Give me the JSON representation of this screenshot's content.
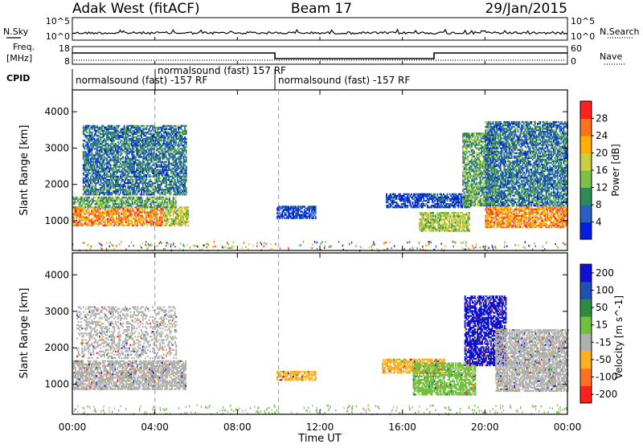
{
  "header": {
    "site": "Adak West (fitACF)",
    "beam": "Beam 17",
    "date": "29/Jan/2015"
  },
  "top_panel": {
    "left_label": "N.Sky",
    "right_label": "N.Search",
    "left_ticks": [
      "10^5",
      "10^0"
    ],
    "right_ticks": [
      "10^5",
      "10^0"
    ]
  },
  "freq_panel": {
    "left_label_1": "Freq.",
    "left_label_2": "[MHz]",
    "left_ticks": [
      "18",
      "8"
    ],
    "right_label": "Nave",
    "right_ticks": [
      "60",
      "0"
    ]
  },
  "cpid": {
    "label": "CPID",
    "segments": [
      {
        "text": "normalsound (fast) -157 RF",
        "start_h": 0,
        "end_h": 4
      },
      {
        "text": "normalsound (fast) 157 RF",
        "start_h": 4,
        "end_h": 10
      },
      {
        "text": "normalsound (fast) -157 RF",
        "start_h": 10,
        "end_h": 24
      }
    ]
  },
  "chart_data": [
    {
      "type": "heatmap",
      "title": "Power",
      "ylabel": "Slant Range [km]",
      "xlabel": "Time UT",
      "x_ticks": [
        "00:00",
        "04:00",
        "08:00",
        "12:00",
        "16:00",
        "20:00",
        "00:00"
      ],
      "y_ticks": [
        1000,
        2000,
        3000,
        4000
      ],
      "xlim_hours": [
        0,
        24
      ],
      "ylim": [
        180,
        4600
      ],
      "colorbar_label": "Power [dB]",
      "colorbar_ticks": [
        4,
        8,
        12,
        16,
        20,
        24,
        28
      ],
      "colorbar_range": [
        0,
        30
      ],
      "colors": [
        "#0020e0",
        "#2860c0",
        "#2e8b57",
        "#7cc04a",
        "#c8d040",
        "#ffb000",
        "#ff7020",
        "#ff2020"
      ],
      "regions": [
        {
          "t0": 0.0,
          "t1": 5.6,
          "r0": 850,
          "r1": 1350,
          "level": 6,
          "fade": true
        },
        {
          "t0": 0.0,
          "t1": 5.0,
          "r0": 1350,
          "r1": 1650,
          "level": 3
        },
        {
          "t0": 0.5,
          "t1": 5.5,
          "r0": 1700,
          "r1": 3600,
          "level": 2
        },
        {
          "t0": 9.9,
          "t1": 11.8,
          "r0": 1050,
          "r1": 1400,
          "level": 1
        },
        {
          "t0": 15.2,
          "t1": 19.3,
          "r0": 1350,
          "r1": 1750,
          "level": 1
        },
        {
          "t0": 16.8,
          "t1": 19.2,
          "r0": 700,
          "r1": 1200,
          "level": 4
        },
        {
          "t0": 18.9,
          "t1": 20.5,
          "r0": 1400,
          "r1": 3400,
          "level": 3
        },
        {
          "t0": 20.0,
          "t1": 24.0,
          "r0": 800,
          "r1": 1400,
          "level": 6
        },
        {
          "t0": 20.0,
          "t1": 24.0,
          "r0": 1400,
          "r1": 3700,
          "level": 2
        }
      ]
    },
    {
      "type": "heatmap",
      "title": "Velocity",
      "ylabel": "Slant Range [km]",
      "xlabel": "Time UT",
      "x_ticks": [
        "00:00",
        "04:00",
        "08:00",
        "12:00",
        "16:00",
        "20:00",
        "00:00"
      ],
      "y_ticks": [
        1000,
        2000,
        3000,
        4000
      ],
      "xlim_hours": [
        0,
        24
      ],
      "ylim": [
        180,
        4600
      ],
      "colorbar_label": "Velocity [m s^-1]",
      "colorbar_ticks": [
        "200",
        "100",
        "50",
        "15",
        "-15",
        "-50",
        "-100",
        "-200"
      ],
      "colors": [
        "#1010d0",
        "#2050b0",
        "#2e8b3e",
        "#70c040",
        "#b0b0b0",
        "#ffb020",
        "#ff7020",
        "#ff2020"
      ],
      "regions": [
        {
          "t0": 0.0,
          "t1": 5.5,
          "r0": 850,
          "r1": 1650,
          "level": 4
        },
        {
          "t0": 0.2,
          "t1": 5.0,
          "r0": 1700,
          "r1": 3100,
          "level": 4,
          "sparse": true
        },
        {
          "t0": 9.9,
          "t1": 11.8,
          "r0": 1100,
          "r1": 1350,
          "level": 5
        },
        {
          "t0": 15.0,
          "t1": 18.0,
          "r0": 1300,
          "r1": 1700,
          "level": 5
        },
        {
          "t0": 16.5,
          "t1": 19.5,
          "r0": 700,
          "r1": 1600,
          "level": 3
        },
        {
          "t0": 19.0,
          "t1": 21.0,
          "r0": 1500,
          "r1": 3400,
          "level": 0
        },
        {
          "t0": 20.5,
          "t1": 24.0,
          "r0": 800,
          "r1": 2500,
          "level": 4
        }
      ]
    }
  ]
}
